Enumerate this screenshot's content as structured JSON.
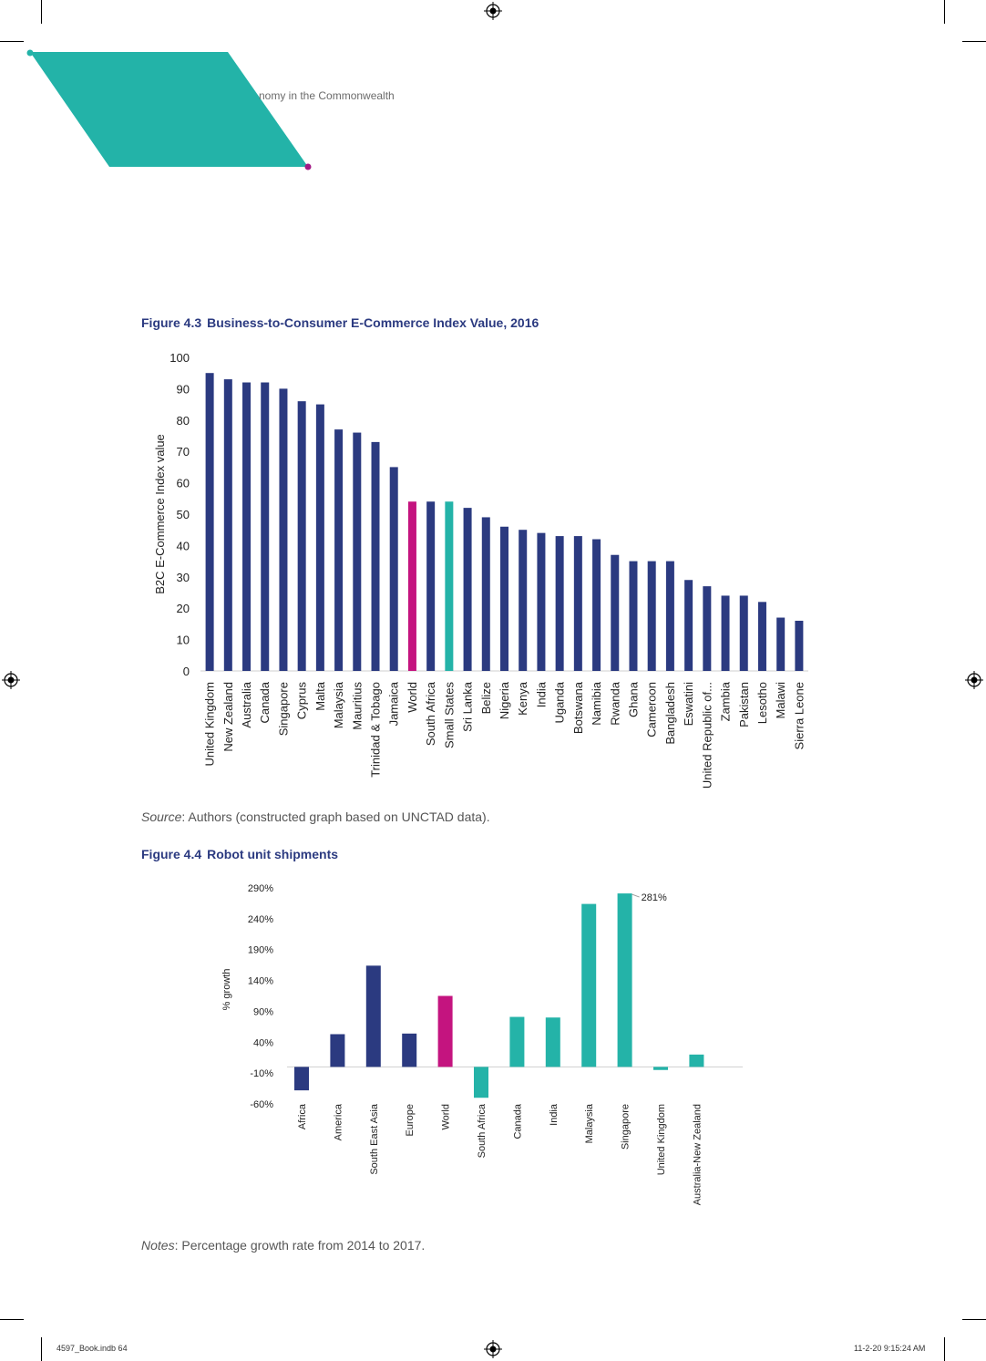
{
  "header": {
    "running_title": "nomy in the Commonwealth"
  },
  "figure_4_3": {
    "number": "Figure 4.3",
    "title": "Business-to-Consumer E-Commerce Index Value, 2016",
    "source_label": "Source",
    "source_text": ": Authors (constructed graph based on UNCTAD data)."
  },
  "figure_4_4": {
    "number": "Figure 4.4",
    "title": "Robot unit shipments",
    "notes_label": "Notes",
    "notes_text": ": Percentage growth rate from 2014 to 2017."
  },
  "footer": {
    "file": "4597_Book.indb   64",
    "timestamp": "11-2-20   9:15:24 AM"
  },
  "colors": {
    "navy": "#2b3a80",
    "magenta": "#c4147f",
    "teal": "#24b3a8",
    "header_teal": "#23b3a8"
  },
  "chart_data": [
    {
      "type": "bar",
      "title": "Business-to-Consumer E-Commerce Index Value, 2016",
      "xlabel": "",
      "ylabel": "B2C E-Commerce Index value",
      "ylim": [
        0,
        100
      ],
      "yticks": [
        0,
        10,
        20,
        30,
        40,
        50,
        60,
        70,
        80,
        90,
        100
      ],
      "categories": [
        "United Kingdom",
        "New Zealand",
        "Australia",
        "Canada",
        "Singapore",
        "Cyprus",
        "Malta",
        "Malaysia",
        "Mauritius",
        "Trinidad & Tobago",
        "Jamaica",
        "World",
        "South Africa",
        "Small States",
        "Sri Lanka",
        "Belize",
        "Nigeria",
        "Kenya",
        "India",
        "Uganda",
        "Botswana",
        "Namibia",
        "Rwanda",
        "Ghana",
        "Cameroon",
        "Bangladesh",
        "Eswatini",
        "United Republic of...",
        "Zambia",
        "Pakistan",
        "Lesotho",
        "Malawi",
        "Sierra Leone"
      ],
      "values": [
        95,
        93,
        92,
        92,
        90,
        86,
        85,
        77,
        76,
        73,
        65,
        54,
        54,
        54,
        52,
        49,
        46,
        45,
        44,
        43,
        43,
        42,
        37,
        35,
        35,
        35,
        29,
        27,
        24,
        24,
        22,
        17,
        16
      ],
      "bar_colors": [
        "navy",
        "navy",
        "navy",
        "navy",
        "navy",
        "navy",
        "navy",
        "navy",
        "navy",
        "navy",
        "navy",
        "magenta",
        "navy",
        "teal",
        "navy",
        "navy",
        "navy",
        "navy",
        "navy",
        "navy",
        "navy",
        "navy",
        "navy",
        "navy",
        "navy",
        "navy",
        "navy",
        "navy",
        "navy",
        "navy",
        "navy",
        "navy",
        "navy"
      ]
    },
    {
      "type": "bar",
      "title": "Robot unit shipments",
      "xlabel": "",
      "ylabel": "% growth",
      "ylim": [
        -60,
        290
      ],
      "yticks": [
        -60,
        -10,
        40,
        90,
        140,
        190,
        240,
        290
      ],
      "ytick_labels": [
        "-60%",
        "-10%",
        "40%",
        "90%",
        "140%",
        "190%",
        "240%",
        "290%"
      ],
      "categories": [
        "Africa",
        "America",
        "South East Asia",
        "Europe",
        "World",
        "South Africa",
        "Canada",
        "India",
        "Malaysia",
        "Singapore",
        "United Kingdom",
        "Australia-New Zealand"
      ],
      "values": [
        -38,
        53,
        164,
        54,
        115,
        -50,
        81,
        80,
        264,
        281,
        -5,
        20
      ],
      "bar_colors": [
        "navy",
        "navy",
        "navy",
        "navy",
        "magenta",
        "teal",
        "teal",
        "teal",
        "teal",
        "teal",
        "teal",
        "teal"
      ],
      "annotations": [
        {
          "category": "Singapore",
          "text": "281%"
        }
      ]
    }
  ]
}
